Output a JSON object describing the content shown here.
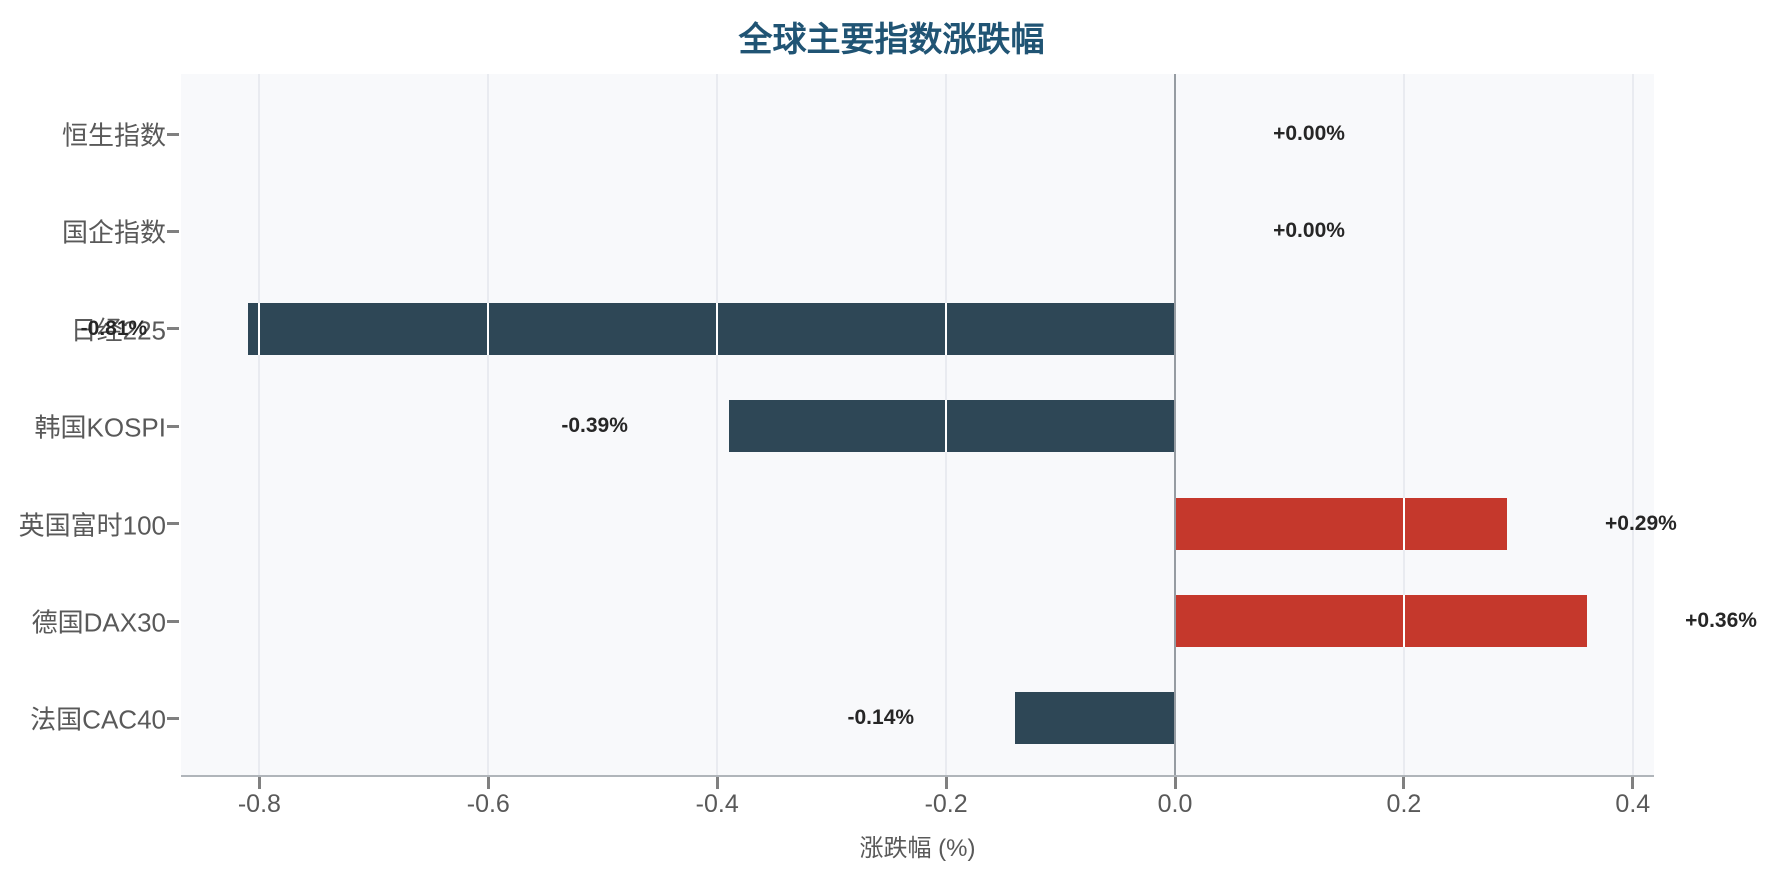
{
  "title": "全球主要指数涨跌幅",
  "chart_data": {
    "type": "bar",
    "orientation": "horizontal",
    "title": "全球主要指数涨跌幅",
    "categories": [
      "恒生指数",
      "国企指数",
      "日经225",
      "韩国KOSPI",
      "英国富时100",
      "德国DAX30",
      "法国CAC40"
    ],
    "values": [
      0.0,
      0.0,
      -0.81,
      -0.39,
      0.29,
      0.36,
      -0.14
    ],
    "value_labels": [
      "+0.00%",
      "+0.00%",
      "-0.81%",
      "-0.39%",
      "+0.29%",
      "+0.36%",
      "-0.14%"
    ],
    "xlabel": "涨跌幅 (%)",
    "ylabel": "",
    "xlim": [
      -0.8685,
      0.4185
    ],
    "xticks": [
      -0.8,
      -0.6,
      -0.4,
      -0.2,
      0.0,
      0.2,
      0.4
    ],
    "xtick_labels": [
      "-0.8",
      "-0.6",
      "-0.4",
      "-0.2",
      "0.0",
      "0.2",
      "0.4"
    ],
    "grid": true,
    "legend_position": "none",
    "colors": {
      "positive_bar": "#c5382c",
      "negative_bar": "#2e4756",
      "title_text": "#205474",
      "data_label_text": "#262626",
      "axis_text": "#595959",
      "plot_background": "#f8f9fb",
      "outer_background": "#ffffff",
      "gridline": "#e9ebf0",
      "gridline_over_bar": "#ffffff",
      "zero_line": "#969ca2",
      "axis_line": "#b0b5ba",
      "tick_mark": "#808080"
    }
  }
}
